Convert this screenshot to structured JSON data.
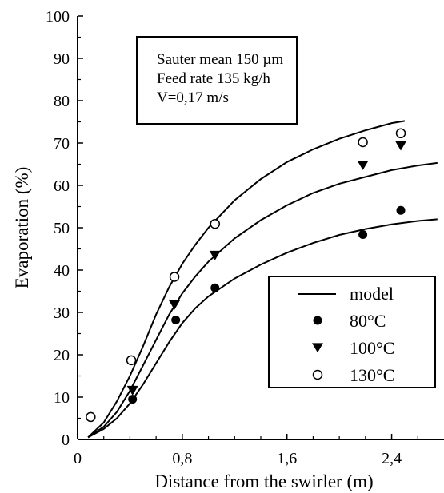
{
  "chart_data": {
    "type": "scatter",
    "title": "",
    "xlabel": "Distance from the swirler (m)",
    "ylabel": "Evaporation (%)",
    "xlim": [
      0,
      2.8
    ],
    "ylim": [
      0,
      100
    ],
    "x_ticks": [
      0,
      0.8,
      1.6,
      2.4
    ],
    "x_tick_labels": [
      "0",
      "0,8",
      "1,6",
      "2,4"
    ],
    "y_ticks": [
      0,
      10,
      20,
      30,
      40,
      50,
      60,
      70,
      80,
      90,
      100
    ],
    "y_tick_labels": [
      "0",
      "10",
      "20",
      "30",
      "40",
      "50",
      "60",
      "70",
      "80",
      "90",
      "100"
    ],
    "annotations": [
      "Sauter mean 150 µm",
      "Feed rate 135 kg/h",
      "V=0,17 m/s"
    ],
    "legend_position": "bottom-right",
    "series": [
      {
        "name": "80°C",
        "marker": "filled-circle",
        "x": [
          0.42,
          0.75,
          1.05,
          2.18,
          2.47
        ],
        "y": [
          9.5,
          28.2,
          35.8,
          48.4,
          54.1
        ]
      },
      {
        "name": "100°C",
        "marker": "filled-triangle-down",
        "x": [
          0.42,
          0.74,
          1.05,
          2.18,
          2.47
        ],
        "y": [
          11.6,
          31.8,
          43.5,
          64.8,
          69.4
        ]
      },
      {
        "name": "130°C",
        "marker": "open-circle",
        "x": [
          0.1,
          0.41,
          0.74,
          1.05,
          2.18,
          2.47
        ],
        "y": [
          5.3,
          18.7,
          38.4,
          50.9,
          70.2,
          72.3
        ]
      }
    ],
    "model_curves": [
      {
        "name": "model",
        "x": [
          0.08,
          0.2,
          0.3,
          0.4,
          0.5,
          0.6,
          0.7,
          0.8,
          0.9,
          1.0,
          1.2,
          1.4,
          1.6,
          1.8,
          2.0,
          2.2,
          2.4,
          2.6,
          2.75
        ],
        "y": [
          0.5,
          2.5,
          5.0,
          8.5,
          13.0,
          18.0,
          23.0,
          27.5,
          31.0,
          33.8,
          38.0,
          41.3,
          44.1,
          46.4,
          48.3,
          49.7,
          50.8,
          51.6,
          52.0
        ]
      },
      {
        "name": "model",
        "x": [
          0.08,
          0.2,
          0.3,
          0.4,
          0.5,
          0.6,
          0.7,
          0.8,
          0.9,
          1.0,
          1.2,
          1.4,
          1.6,
          1.8,
          2.0,
          2.2,
          2.4,
          2.6,
          2.75
        ],
        "y": [
          0.5,
          3.0,
          6.5,
          11.5,
          17.5,
          23.5,
          29.5,
          34.5,
          38.5,
          42.0,
          47.5,
          51.8,
          55.3,
          58.2,
          60.4,
          62.0,
          63.6,
          64.7,
          65.3
        ]
      },
      {
        "name": "model",
        "x": [
          0.08,
          0.2,
          0.3,
          0.4,
          0.5,
          0.6,
          0.7,
          0.8,
          0.9,
          1.0,
          1.2,
          1.4,
          1.6,
          1.8,
          2.0,
          2.2,
          2.4,
          2.5
        ],
        "y": [
          0.5,
          4.0,
          9.0,
          15.0,
          22.0,
          29.5,
          36.0,
          41.5,
          46.0,
          50.0,
          56.5,
          61.5,
          65.5,
          68.5,
          71.0,
          73.0,
          74.7,
          75.2
        ]
      }
    ],
    "legend": [
      {
        "label": "model",
        "marker": "line"
      },
      {
        "label": "80°C",
        "marker": "filled-circle"
      },
      {
        "label": "100°C",
        "marker": "filled-triangle-down"
      },
      {
        "label": "130°C",
        "marker": "open-circle"
      }
    ],
    "grid": false
  }
}
